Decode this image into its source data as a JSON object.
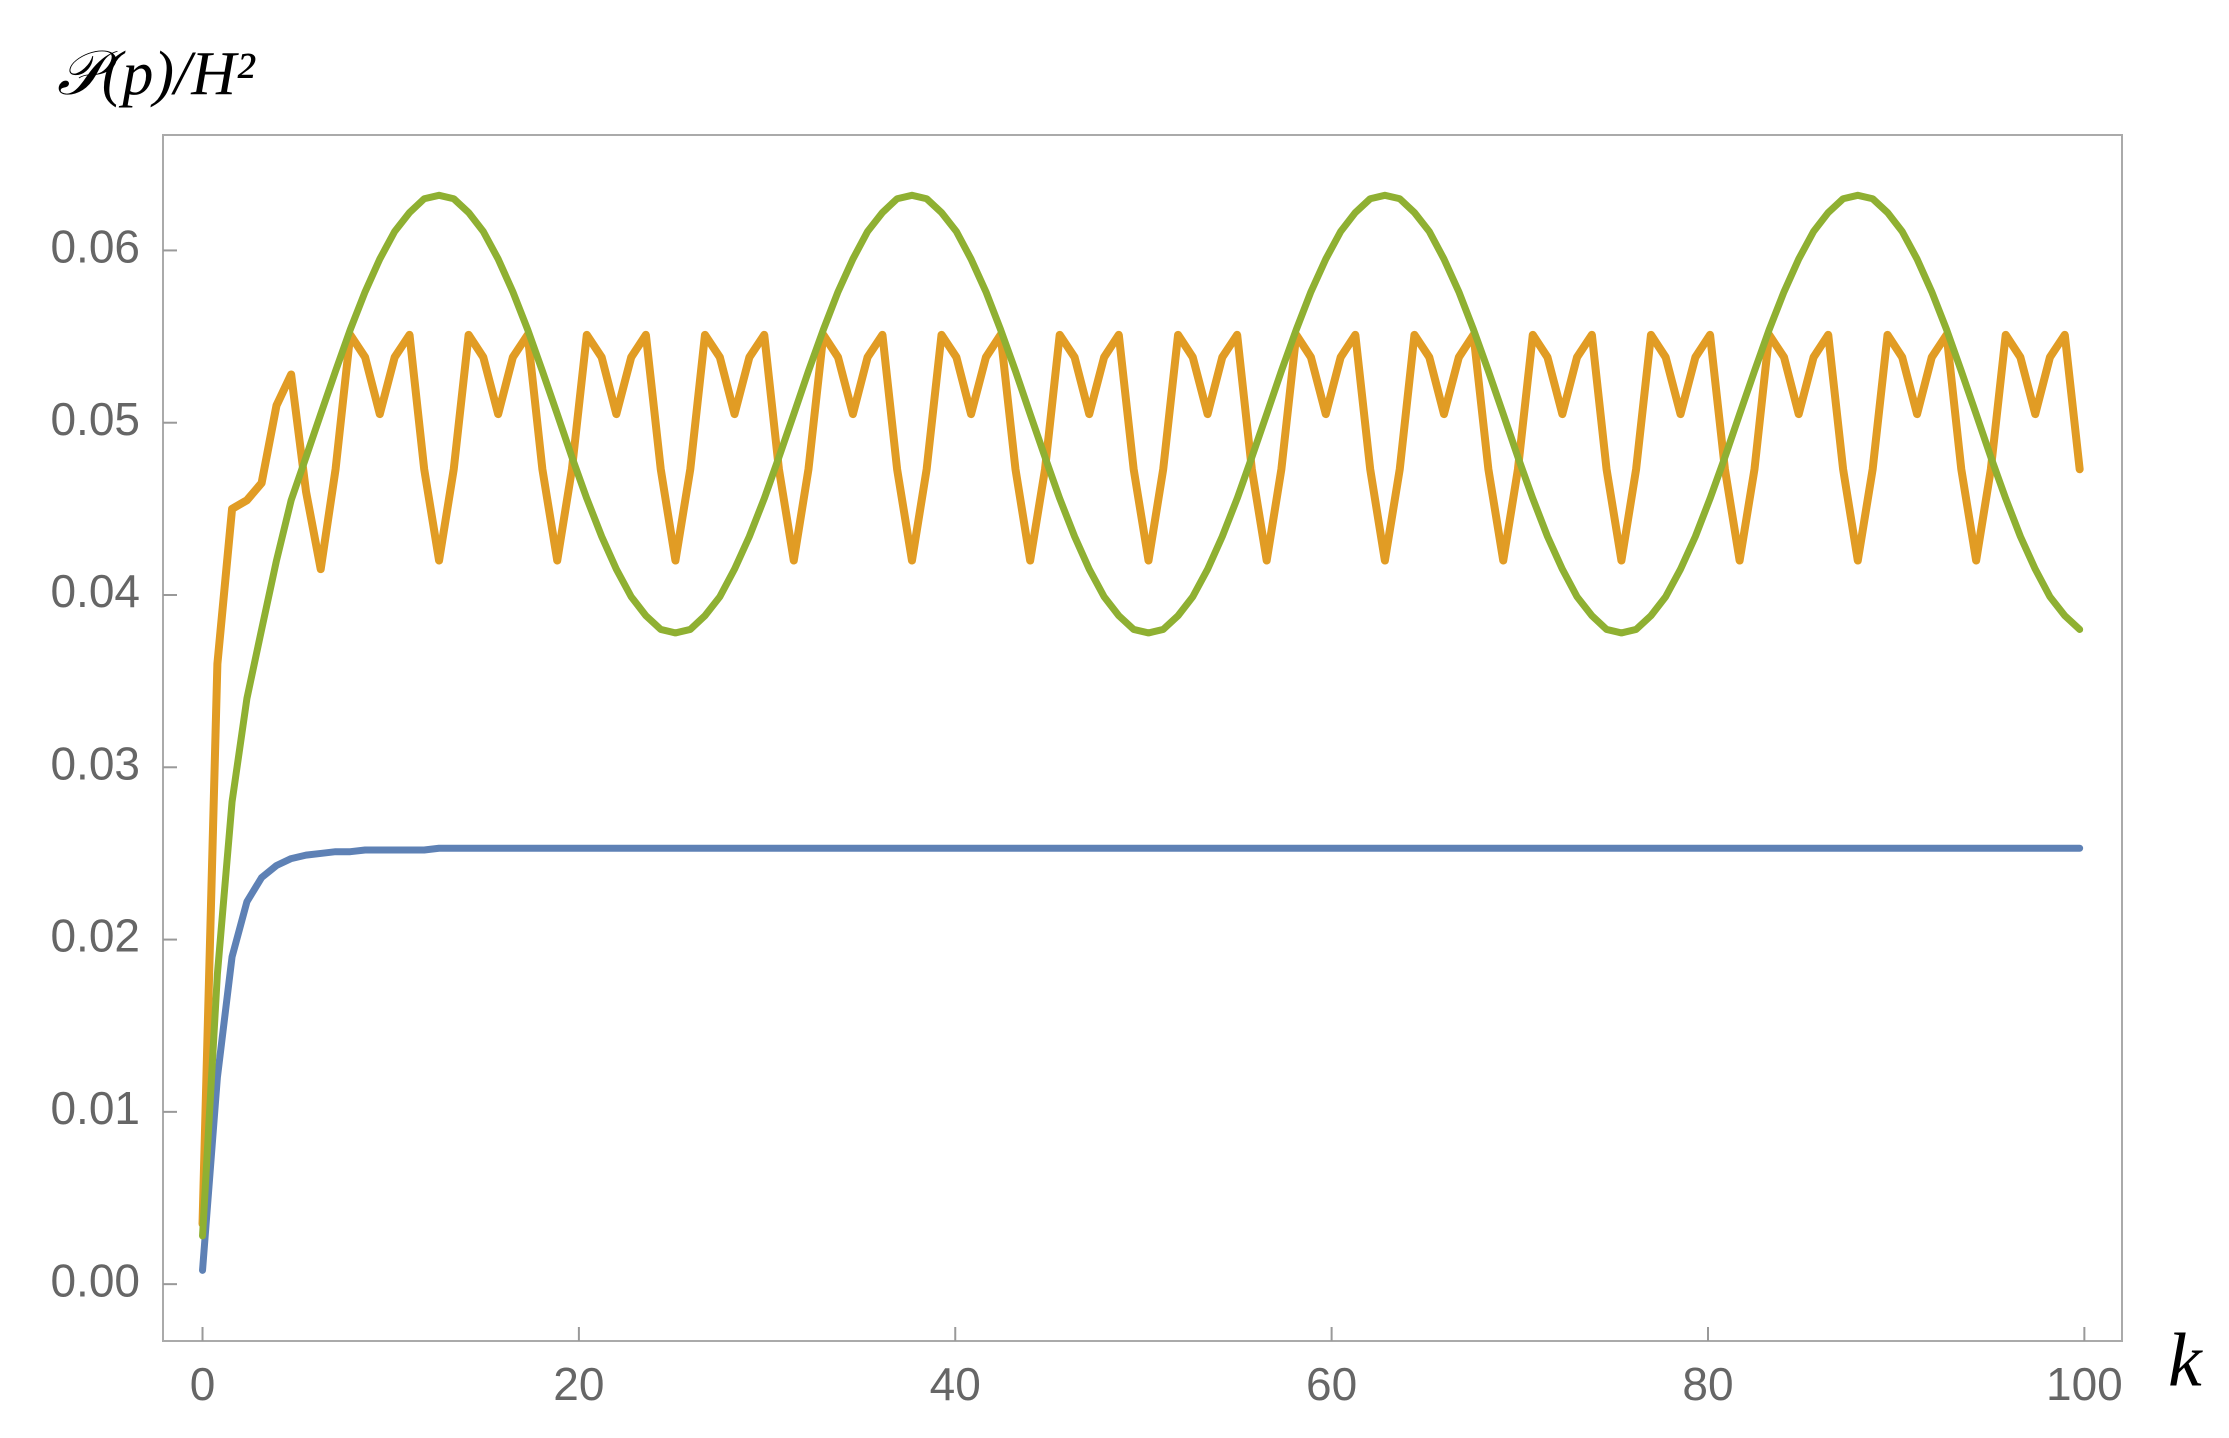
{
  "chart_data": {
    "type": "line",
    "y_label": "𝒫(p)/H²",
    "x_label": "k",
    "xlim": [
      -2.1,
      102
    ],
    "ylim": [
      -0.0033,
      0.0667
    ],
    "xticks": [
      0,
      20,
      40,
      60,
      80,
      100
    ],
    "yticks": [
      {
        "value": 0,
        "label": "0.00"
      },
      {
        "value": 0.01,
        "label": "0.01"
      },
      {
        "value": 0.02,
        "label": "0.02"
      },
      {
        "value": 0.03,
        "label": "0.03"
      },
      {
        "value": 0.04,
        "label": "0.04"
      },
      {
        "value": 0.05,
        "label": "0.05"
      },
      {
        "value": 0.06,
        "label": "0.06"
      }
    ],
    "x": [
      0,
      0.79,
      1.57,
      2.36,
      3.14,
      3.93,
      4.71,
      5.5,
      6.28,
      7.07,
      7.85,
      8.64,
      9.42,
      10.21,
      11,
      11.78,
      12.57,
      13.35,
      14.14,
      14.92,
      15.71,
      16.49,
      17.28,
      18.06,
      18.85,
      19.63,
      20.42,
      21.21,
      21.99,
      22.78,
      23.56,
      24.35,
      25.13,
      25.92,
      26.7,
      27.49,
      28.27,
      29.06,
      29.85,
      30.63,
      31.42,
      32.2,
      32.99,
      33.77,
      34.56,
      35.34,
      36.13,
      36.91,
      37.7,
      38.48,
      39.27,
      40.06,
      40.84,
      41.63,
      42.41,
      43.2,
      43.98,
      44.77,
      45.55,
      46.34,
      47.12,
      47.91,
      48.69,
      49.48,
      50.27,
      51.05,
      51.84,
      52.62,
      53.41,
      54.19,
      54.98,
      55.76,
      56.55,
      57.33,
      58.12,
      58.9,
      59.69,
      60.48,
      61.26,
      62.05,
      62.83,
      63.62,
      64.4,
      65.19,
      65.97,
      66.76,
      67.54,
      68.33,
      69.12,
      69.9,
      70.69,
      71.47,
      72.26,
      73.04,
      73.83,
      74.61,
      75.4,
      76.18,
      76.97,
      77.75,
      78.54,
      79.33,
      80.11,
      80.9,
      81.68,
      82.47,
      83.25,
      84.04,
      84.82,
      85.61,
      86.39,
      87.18,
      87.96,
      88.75,
      89.54,
      90.32,
      91.11,
      91.89,
      92.68,
      93.46,
      94.25,
      95.03,
      95.82,
      96.6,
      97.39,
      98.17,
      98.96,
      99.75
    ],
    "series": [
      {
        "color": "#5e81b5",
        "width": 7,
        "values": [
          0.0008,
          0.012,
          0.019,
          0.0222,
          0.0236,
          0.0243,
          0.0247,
          0.0249,
          0.025,
          0.0251,
          0.0251,
          0.0252,
          0.0252,
          0.0252,
          0.0252,
          0.0252,
          0.0253,
          0.0253,
          0.0253,
          0.0253,
          0.0253,
          0.0253,
          0.0253,
          0.0253,
          0.0253,
          0.0253,
          0.0253,
          0.0253,
          0.0253,
          0.0253,
          0.0253,
          0.0253,
          0.0253,
          0.0253,
          0.0253,
          0.0253,
          0.0253,
          0.0253,
          0.0253,
          0.0253,
          0.0253,
          0.0253,
          0.0253,
          0.0253,
          0.0253,
          0.0253,
          0.0253,
          0.0253,
          0.0253,
          0.0253,
          0.0253,
          0.0253,
          0.0253,
          0.0253,
          0.0253,
          0.0253,
          0.0253,
          0.0253,
          0.0253,
          0.0253,
          0.0253,
          0.0253,
          0.0253,
          0.0253,
          0.0253,
          0.0253,
          0.0253,
          0.0253,
          0.0253,
          0.0253,
          0.0253,
          0.0253,
          0.0253,
          0.0253,
          0.0253,
          0.0253,
          0.0253,
          0.0253,
          0.0253,
          0.0253,
          0.0253,
          0.0253,
          0.0253,
          0.0253,
          0.0253,
          0.0253,
          0.0253,
          0.0253,
          0.0253,
          0.0253,
          0.0253,
          0.0253,
          0.0253,
          0.0253,
          0.0253,
          0.0253,
          0.0253,
          0.0253,
          0.0253,
          0.0253,
          0.0253,
          0.0253,
          0.0253,
          0.0253,
          0.0253,
          0.0253,
          0.0253,
          0.0253,
          0.0253,
          0.0253,
          0.0253,
          0.0253,
          0.0253,
          0.0253,
          0.0253,
          0.0253,
          0.0253,
          0.0253,
          0.0253,
          0.0253,
          0.0253,
          0.0253,
          0.0253,
          0.0253,
          0.0253,
          0.0253,
          0.0253,
          0.0253
        ]
      },
      {
        "color": "#e19c24",
        "width": 8,
        "values": [
          0.0035,
          0.036,
          0.045,
          0.0455,
          0.0465,
          0.051,
          0.0528,
          0.046,
          0.0415,
          0.0473,
          0.0551,
          0.0538,
          0.0505,
          0.0538,
          0.0551,
          0.0473,
          0.042,
          0.0473,
          0.0551,
          0.0538,
          0.0505,
          0.0538,
          0.0551,
          0.0473,
          0.042,
          0.0473,
          0.0551,
          0.0538,
          0.0505,
          0.0538,
          0.0551,
          0.0473,
          0.042,
          0.0473,
          0.0551,
          0.0538,
          0.0505,
          0.0538,
          0.0551,
          0.0473,
          0.042,
          0.0473,
          0.0551,
          0.0538,
          0.0505,
          0.0538,
          0.0551,
          0.0473,
          0.042,
          0.0473,
          0.0551,
          0.0538,
          0.0505,
          0.0538,
          0.0551,
          0.0473,
          0.042,
          0.0473,
          0.0551,
          0.0538,
          0.0505,
          0.0538,
          0.0551,
          0.0473,
          0.042,
          0.0473,
          0.0551,
          0.0538,
          0.0505,
          0.0538,
          0.0551,
          0.0473,
          0.042,
          0.0473,
          0.0551,
          0.0538,
          0.0505,
          0.0538,
          0.0551,
          0.0473,
          0.042,
          0.0473,
          0.0551,
          0.0538,
          0.0505,
          0.0538,
          0.0551,
          0.0473,
          0.042,
          0.0473,
          0.0551,
          0.0538,
          0.0505,
          0.0538,
          0.0551,
          0.0473,
          0.042,
          0.0473,
          0.0551,
          0.0538,
          0.0505,
          0.0538,
          0.0551,
          0.0473,
          0.042,
          0.0473,
          0.0551,
          0.0538,
          0.0505,
          0.0538,
          0.0551,
          0.0473,
          0.042,
          0.0473,
          0.0551,
          0.0538,
          0.0505,
          0.0538,
          0.0551,
          0.0473,
          0.042,
          0.0473,
          0.0551,
          0.0538,
          0.0505,
          0.0538,
          0.0551,
          0.0473
        ]
      },
      {
        "color": "#8fb032",
        "width": 7,
        "values": [
          0.0028,
          0.018,
          0.028,
          0.034,
          0.038,
          0.042,
          0.0455,
          0.048,
          0.0505,
          0.053,
          0.0554,
          0.0576,
          0.0595,
          0.0611,
          0.0622,
          0.063,
          0.0632,
          0.063,
          0.0622,
          0.0611,
          0.0595,
          0.0576,
          0.0554,
          0.053,
          0.0505,
          0.048,
          0.0456,
          0.0434,
          0.0415,
          0.0399,
          0.0388,
          0.038,
          0.0378,
          0.038,
          0.0388,
          0.0399,
          0.0415,
          0.0434,
          0.0456,
          0.048,
          0.0505,
          0.053,
          0.0554,
          0.0576,
          0.0595,
          0.0611,
          0.0622,
          0.063,
          0.0632,
          0.063,
          0.0622,
          0.0611,
          0.0595,
          0.0576,
          0.0554,
          0.053,
          0.0505,
          0.048,
          0.0456,
          0.0434,
          0.0415,
          0.0399,
          0.0388,
          0.038,
          0.0378,
          0.038,
          0.0388,
          0.0399,
          0.0415,
          0.0434,
          0.0456,
          0.048,
          0.0505,
          0.053,
          0.0554,
          0.0576,
          0.0595,
          0.0611,
          0.0622,
          0.063,
          0.0632,
          0.063,
          0.0622,
          0.0611,
          0.0595,
          0.0576,
          0.0554,
          0.053,
          0.0505,
          0.048,
          0.0456,
          0.0434,
          0.0415,
          0.0399,
          0.0388,
          0.038,
          0.0378,
          0.038,
          0.0388,
          0.0399,
          0.0415,
          0.0434,
          0.0456,
          0.048,
          0.0505,
          0.053,
          0.0554,
          0.0576,
          0.0595,
          0.0611,
          0.0622,
          0.063,
          0.0632,
          0.063,
          0.0622,
          0.0611,
          0.0595,
          0.0576,
          0.0554,
          0.053,
          0.0505,
          0.048,
          0.0456,
          0.0434,
          0.0415,
          0.0399,
          0.0388,
          0.038
        ]
      }
    ]
  }
}
